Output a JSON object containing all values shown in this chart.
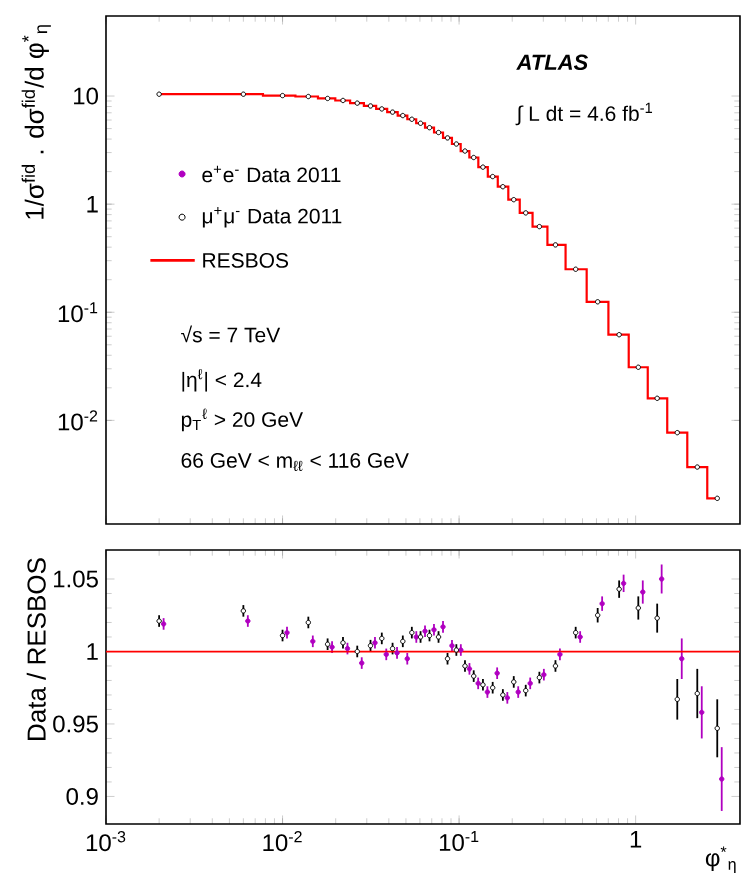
{
  "chart_data": [
    {
      "type": "scatter",
      "ylabel": "1/σ$^{fid}$ . dσ$^{fid}$/d φ$^{*}$$_{η}$",
      "annotations": [
        "ATLAS",
        "∫ L dt = 4.6 fb$^{-1}$",
        "√s = 7 TeV",
        "|η$^{ℓ}$| < 2.4",
        "p$_{T}$$^{ℓ}$ > 20 GeV",
        "66 GeV < m$_{ℓℓ}$ < 116 GeV"
      ],
      "x": [
        0.002,
        0.006,
        0.01,
        0.014,
        0.018,
        0.022,
        0.0265,
        0.0315,
        0.0365,
        0.042,
        0.048,
        0.054,
        0.0605,
        0.068,
        0.0765,
        0.086,
        0.0965,
        0.108,
        0.121,
        0.1365,
        0.155,
        0.177,
        0.204,
        0.2385,
        0.285,
        0.3515,
        0.4575,
        0.6095,
        0.8065,
        1.0355,
        1.3245,
        1.7215,
        2.2345,
        2.8995
      ],
      "series": [
        {
          "name": "e$^{+}$e$^{-}$ Data 2011",
          "color": "#b000c0",
          "marker": "circle",
          "values": [
            null,
            null,
            null,
            null,
            null,
            null,
            null,
            null,
            null,
            null,
            null,
            null,
            null,
            null,
            null,
            null,
            null,
            null,
            null,
            null,
            null,
            null,
            null,
            null,
            null,
            null,
            null,
            null,
            null,
            null,
            null,
            null,
            null,
            null
          ]
        },
        {
          "name": "μ$^{+}$μ$^{-}$ Data 2011",
          "color": "#000000",
          "marker": "circle",
          "values": [
            10.4,
            10.4,
            10.1,
            9.9,
            9.5,
            9.1,
            8.6,
            8.1,
            7.6,
            7.1,
            6.6,
            6.1,
            5.6,
            5.1,
            4.6,
            4.1,
            3.6,
            3.1,
            2.7,
            2.2,
            1.8,
            1.45,
            1.1,
            0.83,
            0.62,
            0.42,
            0.25,
            0.125,
            0.062,
            0.031,
            0.016,
            0.0077,
            0.0037,
            0.0019
          ]
        },
        {
          "name": "RESBOS",
          "type": "step",
          "color": "#ff0000",
          "values": [
            10.4,
            10.4,
            10.1,
            9.9,
            9.5,
            9.1,
            8.6,
            8.1,
            7.6,
            7.1,
            6.6,
            6.1,
            5.6,
            5.1,
            4.6,
            4.1,
            3.6,
            3.1,
            2.7,
            2.2,
            1.8,
            1.45,
            1.1,
            0.83,
            0.62,
            0.42,
            0.25,
            0.125,
            0.062,
            0.031,
            0.016,
            0.0077,
            0.0037,
            0.0019
          ]
        }
      ],
      "log": "xy",
      "xlim": [
        0.001,
        3.9
      ],
      "ylim": [
        0.0011,
        55
      ],
      "xticks": [
        0.001,
        0.01,
        0.1,
        1
      ],
      "yticks": [
        {
          "value": 0.01,
          "label": "10$^{-2}$"
        },
        {
          "value": 0.1,
          "label": "10$^{-1}$"
        },
        1,
        10
      ],
      "tick_labels": "y",
      "legend": "left"
    },
    {
      "type": "scatter",
      "ylabel": "Data / RESBOS",
      "xlabel": "φ$^{*}$$_{η}$",
      "x": [
        0.002,
        0.006,
        0.01,
        0.014,
        0.018,
        0.022,
        0.0265,
        0.0315,
        0.0365,
        0.042,
        0.048,
        0.054,
        0.0605,
        0.068,
        0.0765,
        0.086,
        0.0965,
        0.108,
        0.121,
        0.1365,
        0.155,
        0.177,
        0.204,
        0.2385,
        0.285,
        0.3515,
        0.4575,
        0.6095,
        0.8065,
        1.0355,
        1.3245,
        1.7215,
        2.2345,
        2.8995
      ],
      "series": [
        {
          "color": "#b000c0",
          "marker": "circle",
          "x": [
            0.00212,
            0.00636,
            0.0106,
            0.01484,
            0.01908,
            0.02332,
            0.02809,
            0.03339,
            0.03869,
            0.04452,
            0.05088,
            0.05724,
            0.06413,
            0.07208,
            0.08109,
            0.09116,
            0.10229,
            0.11448,
            0.12826,
            0.14469,
            0.1643,
            0.18762,
            0.21624,
            0.25281,
            0.3021,
            0.37259,
            0.48495,
            0.64607,
            0.85489,
            1.09763,
            1.40397,
            1.82479,
            2.36857,
            3.07347
          ],
          "values": [
            1.019,
            1.021,
            1.013,
            1.007,
            1.003,
            1.002,
            0.992,
            1.006,
            0.998,
            0.999,
            0.995,
            1.01,
            1.014,
            1.015,
            1.017,
            1.004,
            1.001,
            0.988,
            0.978,
            0.972,
            0.985,
            0.968,
            0.972,
            0.978,
            0.984,
            0.998,
            1.01,
            1.033,
            1.047,
            1.041,
            1.05,
            0.995,
            0.958,
            0.912
          ],
          "errors": [
            0.004,
            0.004,
            0.004,
            0.004,
            0.004,
            0.004,
            0.004,
            0.004,
            0.004,
            0.004,
            0.004,
            0.004,
            0.004,
            0.004,
            0.004,
            0.004,
            0.004,
            0.004,
            0.004,
            0.004,
            0.004,
            0.004,
            0.004,
            0.004,
            0.004,
            0.004,
            0.004,
            0.005,
            0.006,
            0.008,
            0.01,
            0.014,
            0.018,
            0.022
          ]
        },
        {
          "color": "#000000",
          "marker": "circle",
          "values": [
            1.021,
            1.028,
            1.011,
            1.02,
            1.005,
            1.006,
            1.0,
            1.004,
            1.009,
            1.002,
            1.007,
            1.013,
            1.01,
            1.011,
            1.01,
            0.995,
            1.001,
            0.99,
            0.983,
            0.977,
            0.975,
            0.97,
            0.979,
            0.973,
            0.982,
            0.99,
            1.013,
            1.025,
            1.043,
            1.03,
            1.023,
            0.967,
            0.971,
            0.947
          ],
          "errors": [
            0.004,
            0.004,
            0.004,
            0.004,
            0.004,
            0.004,
            0.004,
            0.004,
            0.004,
            0.004,
            0.004,
            0.004,
            0.004,
            0.004,
            0.004,
            0.004,
            0.004,
            0.004,
            0.004,
            0.004,
            0.004,
            0.004,
            0.004,
            0.004,
            0.004,
            0.004,
            0.004,
            0.005,
            0.006,
            0.008,
            0.01,
            0.014,
            0.017,
            0.02
          ]
        }
      ],
      "ref_lines": [
        {
          "axis": "y",
          "value": 1,
          "color": "#ff0000"
        }
      ],
      "log": "x",
      "xlim": [
        0.001,
        3.9
      ],
      "ylim": [
        0.881,
        1.07
      ],
      "xticks": [
        {
          "value": 0.001,
          "label": "10$^{-3}$"
        },
        {
          "value": 0.01,
          "label": "10$^{-2}$"
        },
        {
          "value": 0.1,
          "label": "10$^{-1}$"
        },
        1
      ],
      "yticks": [
        0.9,
        0.95,
        1,
        1.05
      ]
    }
  ]
}
